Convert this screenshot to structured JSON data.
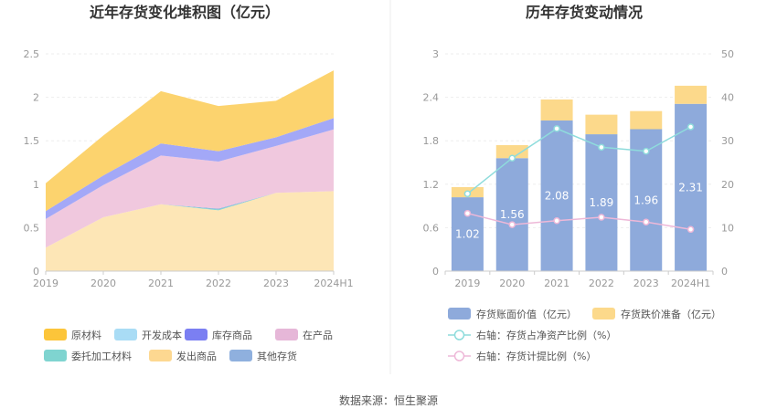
{
  "source_prefix": "数据来源：",
  "source_name": "恒生聚源",
  "chart_data": [
    {
      "type": "area",
      "stacked": true,
      "title": "近年存货变化堆积图（亿元）",
      "categories": [
        "2019",
        "2020",
        "2021",
        "2022",
        "2023",
        "2024H1"
      ],
      "ylim": [
        0,
        2.5
      ],
      "yticks": [
        "0",
        "0.5",
        "1",
        "1.5",
        "2",
        "2.5"
      ],
      "series": [
        {
          "name": "发出商品",
          "color": "#fde6b6",
          "values": [
            0.27,
            0.62,
            0.77,
            0.7,
            0.9,
            0.92
          ]
        },
        {
          "name": "委托加工材料",
          "color": "#7fd4d0",
          "values": [
            0.0,
            0.0,
            0.0,
            0.01,
            0.0,
            0.0
          ]
        },
        {
          "name": "其他存货",
          "color": "#8fb0de",
          "values": [
            0.0,
            0.0,
            0.0,
            0.01,
            0.0,
            0.0
          ]
        },
        {
          "name": "开发成本",
          "color": "#a9dcf5",
          "values": [
            0.0,
            0.0,
            0.0,
            0.0,
            0.0,
            0.0
          ]
        },
        {
          "name": "在产品",
          "color": "#f0c8de",
          "values": [
            0.33,
            0.37,
            0.56,
            0.54,
            0.54,
            0.71
          ]
        },
        {
          "name": "库存商品",
          "color": "#a3a8f7",
          "values": [
            0.09,
            0.11,
            0.14,
            0.12,
            0.1,
            0.13
          ]
        },
        {
          "name": "原材料",
          "color": "#fcd36e",
          "values": [
            0.32,
            0.46,
            0.6,
            0.52,
            0.42,
            0.55
          ]
        }
      ],
      "legend": [
        {
          "name": "原材料",
          "color": "#fcc53a"
        },
        {
          "name": "开发成本",
          "color": "#a9dcf5"
        },
        {
          "name": "库存商品",
          "color": "#7b7ff2"
        },
        {
          "name": "在产品",
          "color": "#e6b7d8"
        },
        {
          "name": "委托加工材料",
          "color": "#7fd4d0"
        },
        {
          "name": "发出商品",
          "color": "#fdd891"
        },
        {
          "name": "其他存货",
          "color": "#8fb0de"
        }
      ]
    },
    {
      "type": "bar",
      "stacked": true,
      "title": "历年存货变动情况",
      "categories": [
        "2019",
        "2020",
        "2021",
        "2022",
        "2023",
        "2024H1"
      ],
      "ylim": [
        0,
        3
      ],
      "yticks": [
        "0",
        "0.6",
        "1.2",
        "1.8",
        "2.4",
        "3"
      ],
      "y2lim": [
        0,
        50
      ],
      "y2ticks": [
        "0",
        "10",
        "20",
        "30",
        "40",
        "50"
      ],
      "series": [
        {
          "name": "存货账面价值（亿元）",
          "color": "#8eaadb",
          "values": [
            1.02,
            1.56,
            2.08,
            1.89,
            1.96,
            2.31
          ],
          "labels": [
            "1.02",
            "1.56",
            "2.08",
            "1.89",
            "1.96",
            "2.31"
          ]
        },
        {
          "name": "存货跌价准备（亿元）",
          "color": "#fcd98b",
          "values": [
            0.14,
            0.18,
            0.29,
            0.27,
            0.25,
            0.25
          ]
        }
      ],
      "lines": [
        {
          "name": "右轴：存货占净资产比例（%）",
          "color": "#8edcdc",
          "values": [
            17.8,
            26.0,
            32.8,
            28.5,
            27.6,
            33.2
          ]
        },
        {
          "name": "右轴：存货计提比例（%）",
          "color": "#eeb8d8",
          "values": [
            13.3,
            10.7,
            11.6,
            12.4,
            11.3,
            9.6
          ]
        }
      ]
    }
  ]
}
